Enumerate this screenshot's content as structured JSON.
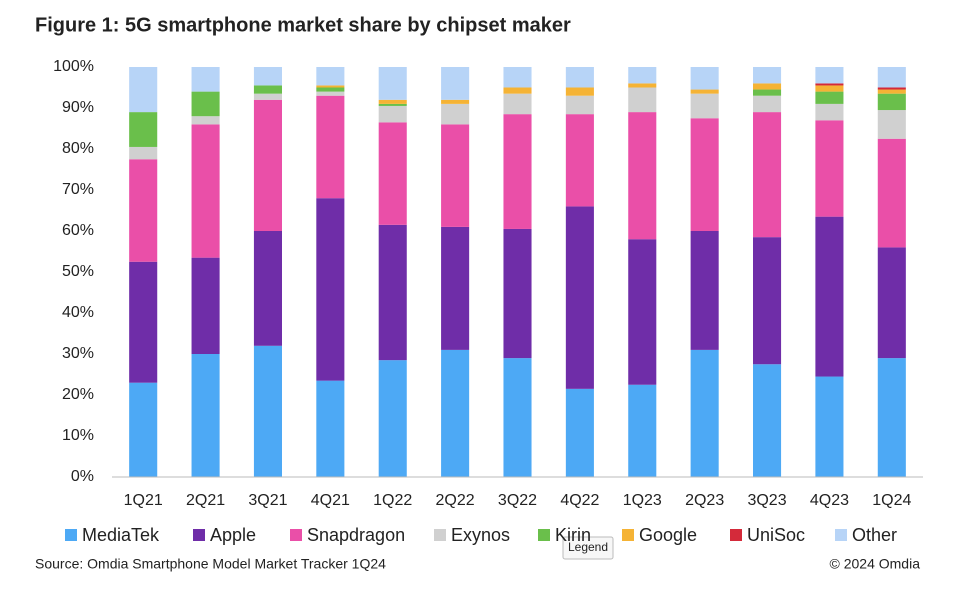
{
  "chart_data": {
    "type": "stacked-bar",
    "title": "Figure 1: 5G smartphone market share by chipset maker",
    "source": "Source: Omdia Smartphone Model Market Tracker 1Q24",
    "copyright": "© 2024 Omdia",
    "tooltip": "Legend",
    "categories": [
      "1Q21",
      "2Q21",
      "3Q21",
      "4Q21",
      "1Q22",
      "2Q22",
      "3Q22",
      "4Q22",
      "1Q23",
      "2Q23",
      "3Q23",
      "4Q23",
      "1Q24"
    ],
    "series": [
      {
        "name": "MediaTek",
        "color": "#4da9f5",
        "values": [
          23,
          30,
          32,
          23.5,
          28.5,
          31,
          29,
          21.5,
          22.5,
          31,
          27.5,
          24.5,
          29
        ]
      },
      {
        "name": "Apple",
        "color": "#6f2da8",
        "values": [
          29.5,
          23.5,
          28,
          44.5,
          33,
          30,
          31.5,
          44.5,
          35.5,
          29,
          31,
          39,
          27
        ]
      },
      {
        "name": "Snapdragon",
        "color": "#ea4fa8",
        "values": [
          25,
          32.5,
          32,
          25,
          25,
          25,
          28,
          22.5,
          31,
          27.5,
          30.5,
          23.5,
          26.5
        ]
      },
      {
        "name": "Exynos",
        "color": "#d0d0d0",
        "values": [
          3,
          2,
          1.5,
          1,
          4,
          5,
          5,
          4.5,
          6,
          6,
          4,
          4,
          7
        ]
      },
      {
        "name": "Kirin",
        "color": "#6abf4b",
        "values": [
          8.5,
          6,
          2,
          1,
          0.5,
          0,
          0,
          0,
          0,
          0,
          1.5,
          3,
          4
        ]
      },
      {
        "name": "Google",
        "color": "#f5b335",
        "values": [
          0,
          0,
          0,
          0.5,
          1,
          1,
          1.5,
          2,
          1,
          1,
          1.5,
          1.5,
          1
        ]
      },
      {
        "name": "UniSoc",
        "color": "#d42a3a",
        "values": [
          0,
          0,
          0,
          0,
          0,
          0,
          0,
          0,
          0,
          0,
          0,
          0.5,
          0.5
        ]
      },
      {
        "name": "Other",
        "color": "#b7d4f7",
        "values": [
          11,
          6,
          4.5,
          4.5,
          8,
          8,
          5,
          5,
          4,
          5.5,
          4,
          4,
          5
        ]
      }
    ],
    "ylim": [
      0,
      100
    ],
    "yticks": [
      {
        "value": 0,
        "label": "0%"
      },
      {
        "value": 10,
        "label": "10%"
      },
      {
        "value": 20,
        "label": "20%"
      },
      {
        "value": 30,
        "label": "30%"
      },
      {
        "value": 40,
        "label": "40%"
      },
      {
        "value": 50,
        "label": "50%"
      },
      {
        "value": 60,
        "label": "60%"
      },
      {
        "value": 70,
        "label": "70%"
      },
      {
        "value": 80,
        "label": "80%"
      },
      {
        "value": 90,
        "label": "90%"
      },
      {
        "value": 100,
        "label": "100%"
      }
    ],
    "grid": false,
    "legend": "bottom"
  }
}
